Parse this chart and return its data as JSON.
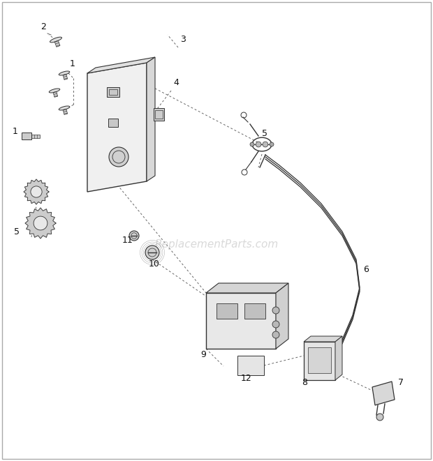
{
  "bg_color": "#ffffff",
  "watermark": "ReplacementParts.com",
  "watermark_color": "#bbbbbb",
  "fig_width": 6.2,
  "fig_height": 6.61,
  "dpi": 100,
  "line_color": "#333333",
  "dash_color": "#666666"
}
